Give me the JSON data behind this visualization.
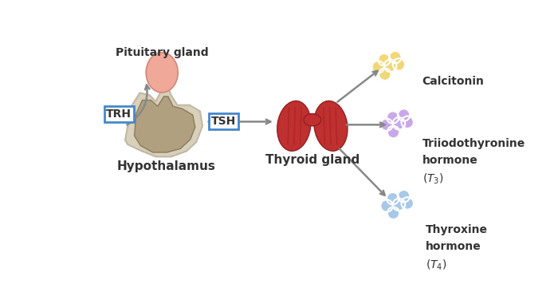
{
  "bg_color": "#ffffff",
  "hypothalamus_label": "Hypothalamus",
  "pituitary_label": "Pituitary gland",
  "thyroid_label": "Thyroid gland",
  "trh_label": "TRH",
  "tsh_label": "TSH",
  "blue_color": "#a8c8e8",
  "purple_color": "#c8a8e8",
  "yellow_color": "#f0d878",
  "arrow_color": "#888888",
  "box_color": "#4488cc",
  "hypo_body_color": "#b0a080",
  "hypo_outline_color": "#d8d0b8",
  "pit_color": "#f0a898",
  "thyroid_color": "#c03030"
}
